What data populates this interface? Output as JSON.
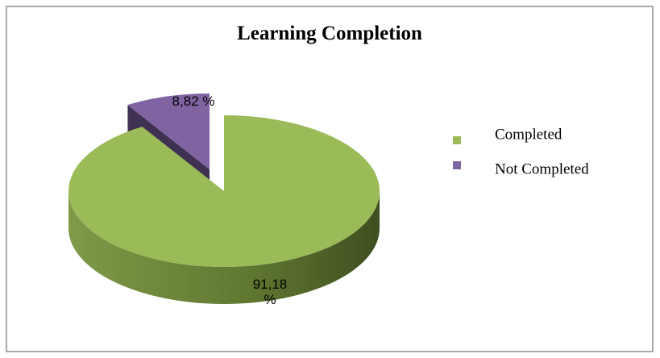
{
  "chart_data": {
    "type": "pie",
    "title": "Learning Completion",
    "categories": [
      "Completed",
      "Not Completed"
    ],
    "values": [
      91.18,
      8.82
    ],
    "value_labels": [
      "91,18 %",
      "8,82 %"
    ],
    "colors": [
      "#9bbb59",
      "#8064a2"
    ],
    "legend": "right"
  }
}
